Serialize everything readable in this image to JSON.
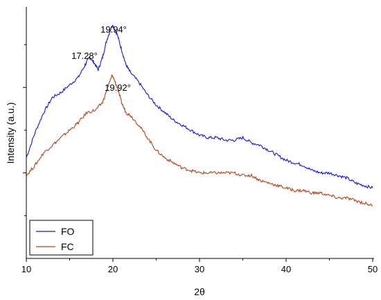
{
  "chart_data": {
    "type": "line",
    "title": "",
    "xlabel": "2θ",
    "ylabel": "Intensity (a.u.)",
    "xlim": [
      10,
      50
    ],
    "x_ticks": [
      "10",
      "20",
      "30",
      "40",
      "50"
    ],
    "y_ticks_labeled": false,
    "grid": false,
    "legend_position": "bottom-left",
    "series": [
      {
        "name": "FO",
        "color": "#1515e0",
        "x": [
          10,
          11,
          12,
          13,
          14,
          15,
          16,
          16.8,
          17.28,
          17.8,
          18.3,
          18.8,
          19.3,
          19.94,
          20.5,
          21,
          21.5,
          22,
          23,
          24,
          25,
          26,
          27,
          28,
          29,
          30,
          31,
          32,
          33,
          34,
          35,
          36,
          37,
          38,
          39,
          40,
          41,
          42,
          43,
          44,
          45,
          46,
          47,
          48,
          49,
          50
        ],
        "y": [
          0.4,
          0.5,
          0.58,
          0.64,
          0.66,
          0.69,
          0.72,
          0.77,
          0.8,
          0.78,
          0.75,
          0.8,
          0.87,
          0.93,
          0.89,
          0.83,
          0.77,
          0.74,
          0.7,
          0.65,
          0.61,
          0.58,
          0.55,
          0.53,
          0.51,
          0.49,
          0.48,
          0.48,
          0.47,
          0.47,
          0.48,
          0.46,
          0.45,
          0.43,
          0.41,
          0.39,
          0.38,
          0.37,
          0.35,
          0.34,
          0.34,
          0.33,
          0.32,
          0.3,
          0.29,
          0.28
        ]
      },
      {
        "name": "FC",
        "color": "#b0431b",
        "x": [
          10,
          11,
          12,
          13,
          14,
          15,
          16,
          17,
          18,
          18.8,
          19.4,
          19.92,
          20.5,
          21,
          21.5,
          22,
          23,
          24,
          25,
          26,
          27,
          28,
          29,
          30,
          31,
          32,
          33,
          34,
          35,
          36,
          37,
          38,
          39,
          40,
          41,
          42,
          43,
          44,
          45,
          46,
          47,
          48,
          49,
          50
        ],
        "y": [
          0.33,
          0.37,
          0.42,
          0.45,
          0.48,
          0.51,
          0.54,
          0.58,
          0.59,
          0.62,
          0.68,
          0.73,
          0.68,
          0.62,
          0.58,
          0.57,
          0.53,
          0.48,
          0.43,
          0.4,
          0.38,
          0.36,
          0.35,
          0.34,
          0.34,
          0.34,
          0.34,
          0.34,
          0.33,
          0.33,
          0.31,
          0.3,
          0.29,
          0.28,
          0.27,
          0.27,
          0.26,
          0.26,
          0.25,
          0.24,
          0.24,
          0.23,
          0.22,
          0.21
        ]
      }
    ],
    "annotations": [
      {
        "text": "17.28°",
        "x": 17.28
      },
      {
        "text": "19.94°",
        "x": 19.94
      },
      {
        "text": "19.92°",
        "x": 19.92
      }
    ]
  }
}
